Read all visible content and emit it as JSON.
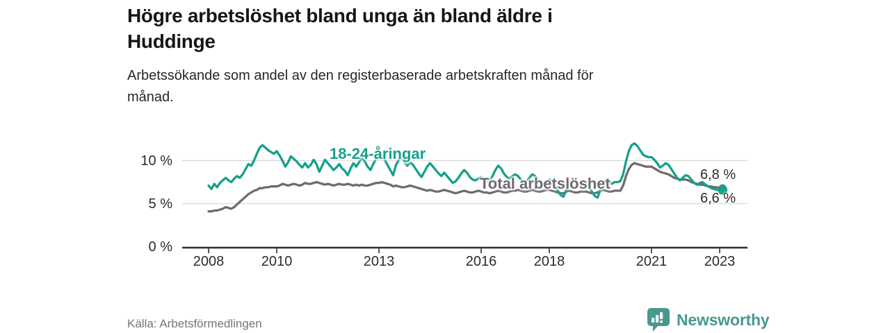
{
  "header": {
    "title_line1": "Högre arbetslöshet bland unga än bland äldre i",
    "title_line2": "Huddinge",
    "subtitle_line1": "Arbetssökande som andel av den registerbaserade arbetskraften månad för",
    "subtitle_line2": "månad."
  },
  "footer": {
    "source": "Källa: Arbetsförmedlingen",
    "brand": "Newsworthy"
  },
  "colors": {
    "youth": "#17a08b",
    "total": "#6f6b71",
    "grid": "#d9d9d9",
    "axis": "#2c2c2c",
    "brand": "#47998f"
  },
  "chart_data": {
    "type": "line",
    "title": "Högre arbetslöshet bland unga än bland äldre i Huddinge",
    "subtitle": "Arbetssökande som andel av den registerbaserade arbetskraften månad för månad.",
    "unit": "%",
    "x_start_year": 2008,
    "x_step_months": 1,
    "x_end": "2023-02",
    "ylim": [
      0,
      13
    ],
    "y_gridlines": [
      5,
      10
    ],
    "grid": true,
    "legend_position": "inline-labels",
    "y_ticks": [
      {
        "v": 0,
        "label": "0 %"
      },
      {
        "v": 5,
        "label": "5 %"
      },
      {
        "v": 10,
        "label": "10 %"
      }
    ],
    "x_ticks": [
      {
        "v": 2008,
        "label": "2008"
      },
      {
        "v": 2010,
        "label": "2010"
      },
      {
        "v": 2013,
        "label": "2013"
      },
      {
        "v": 2016,
        "label": "2016"
      },
      {
        "v": 2018,
        "label": "2018"
      },
      {
        "v": 2021,
        "label": "2021"
      },
      {
        "v": 2023,
        "label": "2023"
      }
    ],
    "series": [
      {
        "name": "Total arbetslöshet",
        "color_key": "total",
        "end_value_label": "6,8 %",
        "values": [
          4.1,
          4.1,
          4.2,
          4.2,
          4.3,
          4.4,
          4.6,
          4.5,
          4.4,
          4.6,
          4.9,
          5.2,
          5.5,
          5.8,
          6.1,
          6.3,
          6.5,
          6.6,
          6.8,
          6.8,
          6.9,
          6.9,
          7.0,
          7.0,
          7.0,
          7.1,
          7.3,
          7.2,
          7.1,
          7.2,
          7.3,
          7.2,
          7.1,
          7.2,
          7.4,
          7.3,
          7.3,
          7.4,
          7.5,
          7.4,
          7.3,
          7.2,
          7.3,
          7.2,
          7.1,
          7.2,
          7.3,
          7.2,
          7.2,
          7.3,
          7.2,
          7.1,
          7.2,
          7.1,
          7.2,
          7.1,
          7.1,
          7.2,
          7.3,
          7.4,
          7.4,
          7.5,
          7.4,
          7.3,
          7.2,
          7.0,
          7.1,
          7.0,
          6.9,
          6.9,
          7.0,
          7.1,
          7.0,
          6.9,
          6.8,
          6.7,
          6.6,
          6.5,
          6.6,
          6.5,
          6.4,
          6.4,
          6.5,
          6.6,
          6.5,
          6.4,
          6.3,
          6.2,
          6.3,
          6.4,
          6.5,
          6.4,
          6.3,
          6.3,
          6.4,
          6.5,
          6.4,
          6.3,
          6.3,
          6.2,
          6.3,
          6.4,
          6.5,
          6.4,
          6.3,
          6.3,
          6.4,
          6.5,
          6.5,
          6.6,
          6.5,
          6.4,
          6.4,
          6.5,
          6.6,
          6.5,
          6.4,
          6.4,
          6.5,
          6.6,
          6.6,
          6.5,
          6.4,
          6.3,
          6.2,
          6.2,
          6.4,
          6.5,
          6.4,
          6.3,
          6.3,
          6.4,
          6.4,
          6.4,
          6.3,
          6.2,
          6.2,
          6.3,
          6.5,
          6.6,
          6.5,
          6.4,
          6.4,
          6.5,
          6.5,
          6.5,
          7.1,
          8.2,
          9.0,
          9.5,
          9.7,
          9.6,
          9.5,
          9.4,
          9.3,
          9.3,
          9.3,
          9.1,
          8.9,
          8.7,
          8.6,
          8.5,
          8.4,
          8.2,
          8.0,
          7.9,
          7.8,
          7.8,
          7.8,
          7.7,
          7.5,
          7.4,
          7.3,
          7.2,
          7.2,
          7.1,
          7.0,
          7.0,
          6.9,
          6.9,
          6.8,
          6.8
        ]
      },
      {
        "name": "18-24-åringar",
        "color_key": "youth",
        "end_value_label": "6,6 %",
        "values": [
          7.1,
          6.7,
          7.3,
          6.9,
          7.4,
          7.7,
          8.0,
          7.7,
          7.5,
          7.9,
          8.2,
          8.0,
          8.4,
          9.0,
          9.6,
          9.4,
          10.0,
          10.8,
          11.5,
          11.8,
          11.5,
          11.2,
          11.0,
          10.8,
          11.1,
          10.6,
          10.0,
          9.3,
          9.8,
          10.5,
          10.2,
          9.9,
          9.5,
          9.2,
          9.7,
          9.2,
          9.5,
          10.1,
          9.6,
          8.7,
          9.4,
          10.1,
          9.7,
          9.3,
          8.9,
          9.2,
          9.6,
          9.1,
          8.8,
          8.3,
          9.1,
          9.7,
          9.3,
          9.8,
          10.4,
          9.9,
          9.3,
          8.9,
          9.6,
          10.2,
          10.4,
          10.8,
          10.1,
          9.5,
          8.9,
          8.3,
          9.5,
          10.1,
          10.4,
          9.8,
          9.4,
          9.8,
          9.5,
          9.0,
          8.5,
          8.1,
          8.7,
          9.3,
          9.7,
          9.3,
          8.9,
          8.5,
          8.2,
          8.6,
          8.2,
          7.8,
          7.4,
          7.6,
          8.0,
          8.5,
          8.9,
          8.6,
          8.1,
          7.8,
          7.7,
          7.9,
          8.1,
          7.8,
          7.5,
          7.7,
          8.2,
          8.9,
          9.4,
          9.1,
          8.5,
          8.1,
          7.9,
          8.2,
          8.4,
          8.2,
          7.8,
          7.4,
          7.6,
          8.0,
          8.4,
          8.2,
          7.8,
          7.4,
          7.2,
          7.5,
          7.8,
          7.6,
          7.1,
          6.5,
          6.0,
          5.8,
          6.6,
          7.3,
          7.7,
          7.4,
          7.1,
          7.3,
          7.5,
          7.3,
          6.9,
          6.4,
          5.9,
          5.7,
          6.6,
          7.4,
          7.8,
          7.6,
          7.3,
          7.5,
          7.5,
          7.6,
          8.4,
          9.9,
          11.1,
          11.8,
          12.0,
          11.7,
          11.2,
          10.7,
          10.5,
          10.4,
          10.4,
          10.1,
          9.7,
          9.2,
          9.4,
          9.7,
          9.5,
          9.0,
          8.5,
          8.0,
          7.7,
          8.0,
          8.3,
          8.2,
          7.8,
          7.4,
          7.2,
          7.4,
          7.5,
          7.2,
          7.0,
          6.8,
          6.7,
          6.6,
          6.7,
          6.6
        ]
      }
    ],
    "end_labels": [
      {
        "text": "6,8 %",
        "series": "Total arbetslöshet"
      },
      {
        "text": "6,6 %",
        "series": "18-24-åringar"
      }
    ]
  }
}
